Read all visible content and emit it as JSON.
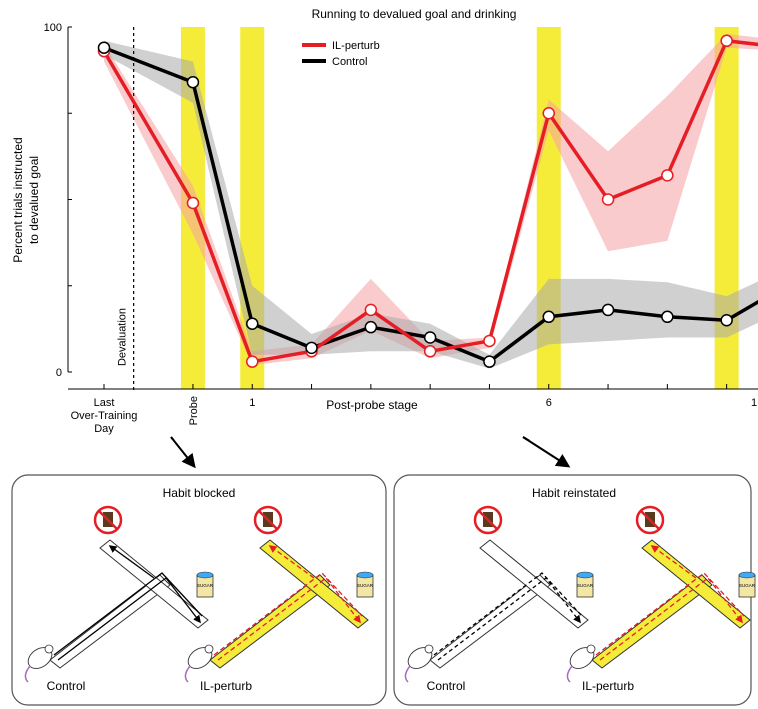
{
  "chart_data": {
    "type": "line",
    "title": "Running to devalued goal and drinking",
    "ylabel_line1": "Percent trials instructed",
    "ylabel_line2": "to devalued goal",
    "xlabel": "Post-probe stage",
    "ylim": [
      0,
      100
    ],
    "y_ticks": [
      "0",
      "100"
    ],
    "x_ticks": [
      {
        "x": -1.5,
        "label_lines": [
          "Last",
          "Over-Training",
          "Day"
        ]
      },
      {
        "x": 1,
        "label_lines": [
          "1"
        ]
      },
      {
        "x": 6,
        "label_lines": [
          "6"
        ]
      },
      {
        "x": 11,
        "label_lines": [
          "1"
        ]
      }
    ],
    "probe_label": "Probe",
    "devaluation_label": "Devaluation",
    "devaluation_x": -1,
    "highlight_color": "#f5ec3a",
    "highlight_x": [
      0,
      1,
      6,
      9
    ],
    "series": [
      {
        "name": "IL-perturb",
        "color": "#e41e24",
        "band_color": "#f5a0a4",
        "x": [
          -1.5,
          0,
          1,
          2,
          3,
          4,
          5,
          6,
          7,
          8,
          9,
          10
        ],
        "y": [
          93,
          49,
          3,
          6,
          18,
          6,
          9,
          75,
          50,
          57,
          96,
          94
        ],
        "lo": [
          90,
          40,
          2,
          4,
          12,
          4,
          7,
          70,
          35,
          38,
          94,
          93
        ],
        "hi": [
          95,
          54,
          6,
          8,
          27,
          9,
          10,
          79,
          64,
          80,
          98,
          96
        ]
      },
      {
        "name": "Control",
        "color": "#000000",
        "band_color": "#a9a9a9",
        "x": [
          -1.5,
          0,
          1,
          2,
          3,
          4,
          5,
          6,
          7,
          8,
          9,
          10
        ],
        "y": [
          94,
          84,
          14,
          7,
          13,
          10,
          3,
          16,
          18,
          16,
          15,
          25
        ],
        "lo": [
          92,
          78,
          5,
          5,
          6,
          6,
          1,
          8,
          9,
          10,
          10,
          18
        ],
        "hi": [
          96,
          90,
          25,
          11,
          17,
          14,
          5,
          27,
          27,
          26,
          22,
          30
        ]
      }
    ]
  },
  "panels": [
    {
      "title": "Habit blocked",
      "mazes": [
        {
          "label": "Control",
          "fill": "none",
          "arrows": "black",
          "sugar_label": "SUGAR"
        },
        {
          "label": "IL-perturb",
          "fill": "yellow",
          "arrows": "red",
          "sugar_label": "SUGAR"
        }
      ]
    },
    {
      "title": "Habit reinstated",
      "mazes": [
        {
          "label": "Control",
          "fill": "none",
          "arrows": "black-dashed",
          "sugar_label": "SUGAR"
        },
        {
          "label": "IL-perturb",
          "fill": "yellow",
          "arrows": "red",
          "sugar_label": "SUGAR"
        }
      ]
    }
  ],
  "icons": [
    "no-drink-icon",
    "sugar-jar-icon",
    "rat-icon",
    "down-right-arrow-icon"
  ]
}
